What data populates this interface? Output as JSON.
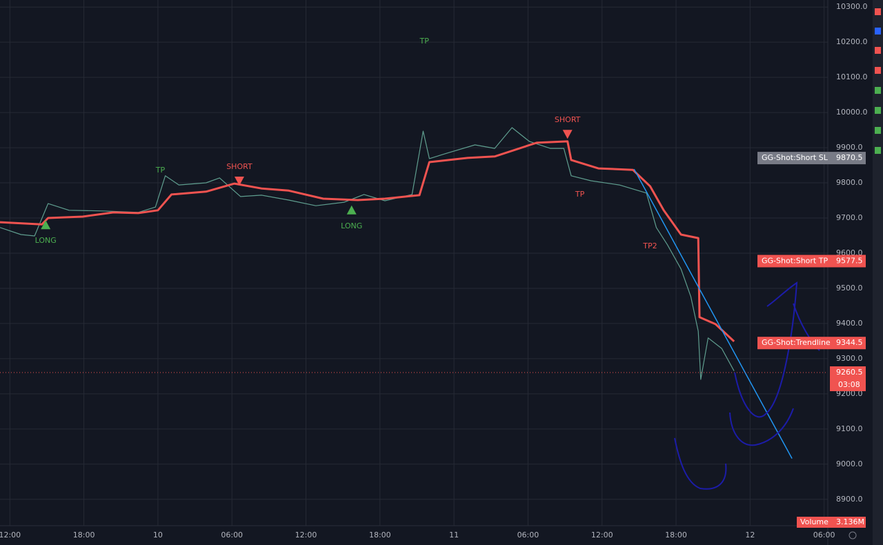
{
  "chart_data": {
    "type": "line",
    "xlim": [
      -0.8,
      66.3
    ],
    "ylim": [
      8825,
      10320
    ],
    "grid": true,
    "xticks": [
      {
        "value": 0,
        "label": "12:00"
      },
      {
        "value": 6,
        "label": "18:00"
      },
      {
        "value": 12,
        "label": "10"
      },
      {
        "value": 18,
        "label": "06:00"
      },
      {
        "value": 24,
        "label": "12:00"
      },
      {
        "value": 30,
        "label": "18:00"
      },
      {
        "value": 36,
        "label": "11"
      },
      {
        "value": 42,
        "label": "06:00"
      },
      {
        "value": 48,
        "label": "12:00"
      },
      {
        "value": 54,
        "label": "18:00"
      },
      {
        "value": 60,
        "label": "12"
      },
      {
        "value": 66,
        "label": "06:00"
      }
    ],
    "yticks": [
      {
        "value": 8900,
        "label": "8900.0"
      },
      {
        "value": 9000,
        "label": "9000.0"
      },
      {
        "value": 9100,
        "label": "9100.0"
      },
      {
        "value": 9200,
        "label": "9200.0"
      },
      {
        "value": 9300,
        "label": "9300.0"
      },
      {
        "value": 9400,
        "label": "9400.0"
      },
      {
        "value": 9500,
        "label": "9500.0"
      },
      {
        "value": 9600,
        "label": "9600.0"
      },
      {
        "value": 9700,
        "label": "9700.0"
      },
      {
        "value": 9800,
        "label": "9800.0"
      },
      {
        "value": 9900,
        "label": "9900.0"
      },
      {
        "value": 10000,
        "label": "10000.0"
      },
      {
        "value": 10100,
        "label": "10100.0"
      },
      {
        "value": 10200,
        "label": "10200.0"
      },
      {
        "value": 10300,
        "label": "10300.0"
      }
    ],
    "series": [
      {
        "color": "#5f9e8f",
        "x": [
          -0.8,
          0.9,
          2.0,
          3.1,
          4.8,
          7.6,
          10.4,
          11.8,
          12.6,
          13.7,
          15.9,
          17.0,
          18.7,
          20.4,
          22.6,
          24.8,
          27.1,
          28.7,
          30.4,
          32.6,
          33.5,
          34.0,
          35.4,
          37.7,
          39.3,
          40.7,
          42.1,
          43.8,
          44.9,
          45.5,
          47.1,
          49.4,
          51.6,
          52.4,
          53.3,
          54.4,
          55.2,
          55.8,
          56.0,
          56.6,
          57.7,
          58.7
        ],
        "values": [
          9673,
          9653,
          9649,
          9741,
          9722,
          9720,
          9716,
          9731,
          9820,
          9794,
          9800,
          9814,
          9761,
          9765,
          9751,
          9735,
          9745,
          9767,
          9749,
          9767,
          9947,
          9869,
          9884,
          9908,
          9898,
          9957,
          9918,
          9898,
          9898,
          9820,
          9806,
          9794,
          9771,
          9673,
          9624,
          9555,
          9476,
          9378,
          9241,
          9359,
          9329,
          9265
        ]
      },
      {
        "color": "#f05350",
        "x": [
          -0.8,
          2.6,
          3.1,
          5.9,
          8.4,
          10.4,
          12.0,
          13.1,
          15.9,
          18.2,
          20.4,
          22.6,
          25.4,
          28.2,
          30.4,
          33.2,
          34.0,
          37.1,
          39.3,
          42.7,
          45.2,
          45.5,
          47.7,
          50.5,
          51.9,
          53.0,
          54.4,
          55.8,
          55.9,
          57.2,
          58.7
        ],
        "values": [
          9688,
          9682,
          9700,
          9704,
          9716,
          9714,
          9722,
          9767,
          9775,
          9798,
          9784,
          9778,
          9755,
          9751,
          9755,
          9765,
          9859,
          9871,
          9875,
          9914,
          9918,
          9865,
          9841,
          9837,
          9790,
          9722,
          9653,
          9643,
          9418,
          9398,
          9349
        ]
      }
    ],
    "trendline": {
      "color": "#2196f3",
      "x": [
        50.6,
        63.4
      ],
      "values": [
        9839,
        9016
      ]
    },
    "annotations": [
      {
        "text": "LONG",
        "x": 2.9,
        "y": 9680,
        "color": "#4caf50",
        "marker": "up"
      },
      {
        "text": "LONG",
        "x": 27.7,
        "y": 9722,
        "color": "#4caf50",
        "marker": "up"
      },
      {
        "text": "SHORT",
        "x": 18.6,
        "y": 9806,
        "color": "#f05350",
        "marker": "down"
      },
      {
        "text": "SHORT",
        "x": 45.2,
        "y": 9939,
        "color": "#f05350",
        "marker": "down"
      },
      {
        "text": "TP",
        "x": 12.2,
        "y": 9835,
        "color": "#4caf50"
      },
      {
        "text": "TP",
        "x": 33.6,
        "y": 10202,
        "color": "#4caf50"
      },
      {
        "text": "TP",
        "x": 46.2,
        "y": 9767,
        "color": "#f05350"
      },
      {
        "text": "TP2",
        "x": 51.9,
        "y": 9620,
        "color": "#f05350"
      }
    ],
    "price_labels": [
      {
        "text": "GG-Shot:Short SL",
        "value": 9870.5,
        "color": "#787b86"
      },
      {
        "text": "GG-Shot:Short TP",
        "value": 9577.5,
        "color": "#f05350"
      },
      {
        "text": "GG-Shot:Trendline",
        "value": 9344.5,
        "color": "#f05350"
      }
    ],
    "last_price": {
      "value": 9260.5,
      "countdown": "03:08",
      "color": "#f05350"
    },
    "volume": {
      "name": "Volume",
      "value_label": "3.136M"
    }
  }
}
